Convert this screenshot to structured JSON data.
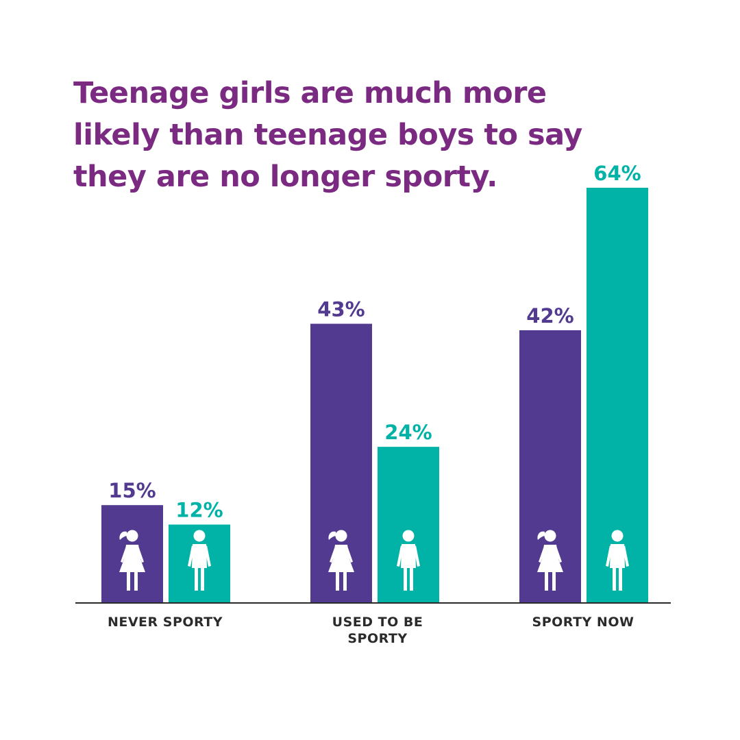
{
  "title": "Teenage girls are much more\nlikely than teenage boys to say\nthey are no longer sporty.",
  "chart_data": {
    "type": "bar",
    "title": "Teenage girls are much more likely than teenage boys to say they are no longer sporty.",
    "categories": [
      [
        "NEVER SPORTY"
      ],
      [
        "USED TO BE",
        "SPORTY"
      ],
      [
        "SPORTY NOW"
      ]
    ],
    "series": [
      {
        "icon": "girl-icon",
        "color": "#523a91",
        "values": [
          15,
          43,
          42
        ],
        "labels": [
          "15%",
          "43%",
          "42%"
        ]
      },
      {
        "icon": "boy-icon",
        "color": "#00b3a6",
        "values": [
          12,
          24,
          64
        ],
        "labels": [
          "12%",
          "24%",
          "64%"
        ]
      }
    ],
    "ylim": [
      0,
      64
    ],
    "grid": false,
    "legend": "none"
  }
}
